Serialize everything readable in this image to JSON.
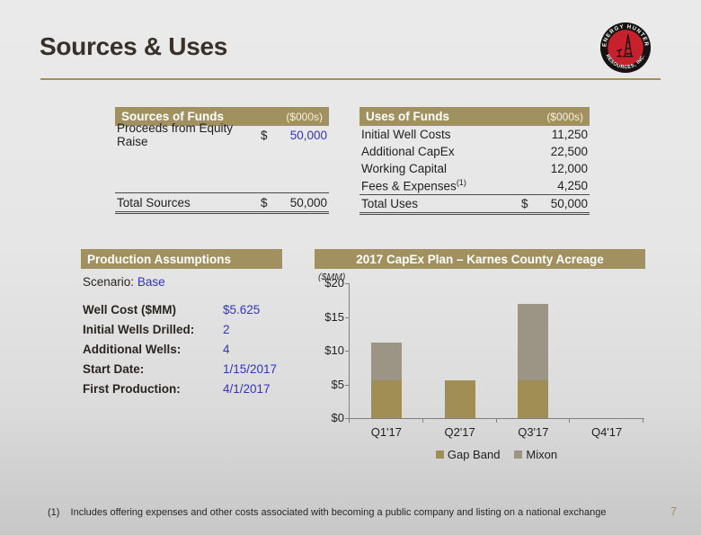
{
  "slide": {
    "title": "Sources & Uses",
    "page_number": "7",
    "footnote_marker": "(1)",
    "footnote_text": "Includes offering expenses and other costs associated with becoming a public company and listing on a national exchange"
  },
  "logo": {
    "top_text": "ENERGY HUNTER",
    "bottom_text": "RESOURCES, INC."
  },
  "colors": {
    "accent_tan": "#A29160",
    "value_blue": "#3333BF",
    "gap_band": "#A08E54",
    "mixon": "#9C9484",
    "axis_gray": "#808080"
  },
  "sources_table": {
    "title": "Sources of Funds",
    "unit": "($000s)",
    "rows": [
      {
        "label": "Proceeds from Equity Raise",
        "currency": "$",
        "value": "50,000"
      }
    ],
    "total": {
      "label": "Total Sources",
      "currency": "$",
      "value": "50,000"
    }
  },
  "uses_table": {
    "title": "Uses of Funds",
    "unit": "($000s)",
    "rows": [
      {
        "label": "Initial Well Costs",
        "value": "11,250"
      },
      {
        "label": "Additional CapEx",
        "value": "22,500"
      },
      {
        "label": "Working Capital",
        "value": "12,000"
      },
      {
        "label": "Fees & Expenses",
        "sup": "(1)",
        "value": "4,250"
      }
    ],
    "total": {
      "label": "Total Uses",
      "currency": "$",
      "value": "50,000"
    }
  },
  "production_assumptions": {
    "title": "Production Assumptions",
    "scenario_label": "Scenario:",
    "scenario_value": "Base",
    "rows": [
      {
        "label": "Well Cost ($MM)",
        "value": "$5.625"
      },
      {
        "label": "Initial Wells Drilled:",
        "value": "2"
      },
      {
        "label": "Additional Wells:",
        "value": "4"
      },
      {
        "label": "Start Date:",
        "value": "1/15/2017"
      },
      {
        "label": "First Production:",
        "value": "4/1/2017"
      }
    ]
  },
  "chart_data": {
    "type": "bar",
    "stacked": true,
    "title": "2017 CapEx Plan – Karnes County Acreage",
    "unit_label": "($MM)",
    "categories": [
      "Q1'17",
      "Q2'17",
      "Q3'17",
      "Q4'17"
    ],
    "series": [
      {
        "name": "Gap Band",
        "color": "#A08E54",
        "values": [
          5.625,
          5.625,
          5.625,
          0
        ]
      },
      {
        "name": "Mixon",
        "color": "#9C9484",
        "values": [
          5.625,
          0,
          11.25,
          0
        ]
      }
    ],
    "ylim": [
      0,
      20
    ],
    "yticks": [
      0,
      5,
      10,
      15,
      20
    ],
    "ytick_labels": [
      "$0",
      "$5",
      "$10",
      "$15",
      "$20"
    ],
    "grid": false,
    "legend_position": "bottom"
  }
}
